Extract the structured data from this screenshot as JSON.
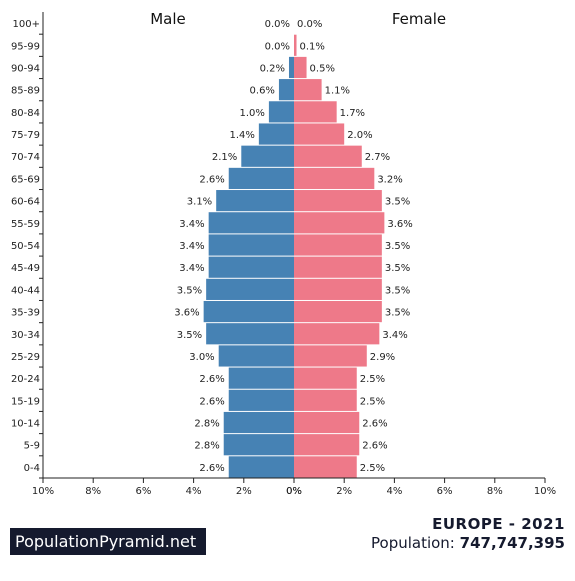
{
  "chart_data": {
    "type": "bar",
    "orientation": "horizontal-population-pyramid",
    "categories": [
      "100+",
      "95-99",
      "90-94",
      "85-89",
      "80-84",
      "75-79",
      "70-74",
      "65-69",
      "60-64",
      "55-59",
      "50-54",
      "45-49",
      "40-44",
      "35-39",
      "30-34",
      "25-29",
      "20-24",
      "15-19",
      "10-14",
      "5-9",
      "0-4"
    ],
    "series": [
      {
        "name": "Male",
        "color": "#4682b4",
        "values": [
          0.0,
          0.0,
          0.2,
          0.6,
          1.0,
          1.4,
          2.1,
          2.6,
          3.1,
          3.4,
          3.4,
          3.4,
          3.5,
          3.6,
          3.5,
          3.0,
          2.6,
          2.6,
          2.8,
          2.8,
          2.6
        ],
        "labels": [
          "0.0%",
          "0.0%",
          "0.2%",
          "0.6%",
          "1.0%",
          "1.4%",
          "2.1%",
          "2.6%",
          "3.1%",
          "3.4%",
          "3.4%",
          "3.4%",
          "3.5%",
          "3.6%",
          "3.5%",
          "3.0%",
          "2.6%",
          "2.6%",
          "2.8%",
          "2.8%",
          "2.6%"
        ]
      },
      {
        "name": "Female",
        "color": "#ee7989",
        "values": [
          0.0,
          0.1,
          0.5,
          1.1,
          1.7,
          2.0,
          2.7,
          3.2,
          3.5,
          3.6,
          3.5,
          3.5,
          3.5,
          3.5,
          3.4,
          2.9,
          2.5,
          2.5,
          2.6,
          2.6,
          2.5
        ],
        "labels": [
          "0.0%",
          "0.1%",
          "0.5%",
          "1.1%",
          "1.7%",
          "2.0%",
          "2.7%",
          "3.2%",
          "3.5%",
          "3.6%",
          "3.5%",
          "3.5%",
          "3.5%",
          "3.5%",
          "3.4%",
          "2.9%",
          "2.5%",
          "2.5%",
          "2.6%",
          "2.6%",
          "2.5%"
        ]
      }
    ],
    "xlim": [
      -10,
      10
    ],
    "x_ticks": [
      "10%",
      "8%",
      "6%",
      "4%",
      "2%",
      "0%",
      "0%",
      "2%",
      "4%",
      "6%",
      "8%",
      "10%"
    ],
    "grid": false
  },
  "brand": "PopulationPyramid.net",
  "region_title": "EUROPE - 2021",
  "population_label": "Population:",
  "population_value": "747,747,395"
}
